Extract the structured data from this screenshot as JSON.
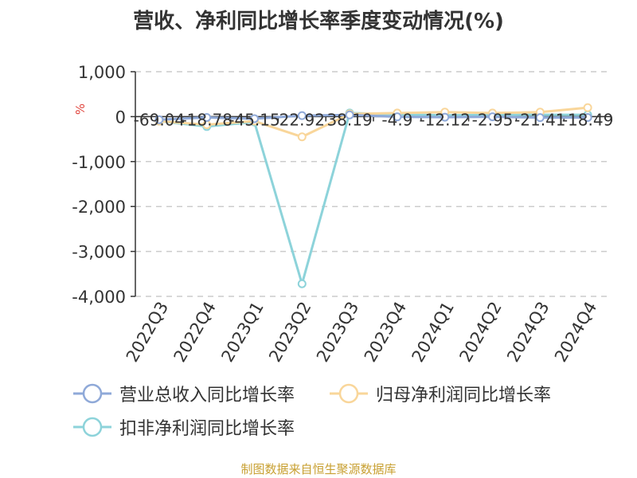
{
  "title": "营收、净利同比增长率季度变动情况(%)",
  "source": "制图数据来自恒生聚源数据库",
  "chart_data": {
    "type": "line",
    "ylabel": "%",
    "ylim": [
      -4000,
      1000
    ],
    "yticks": [
      "1,000",
      "0",
      "-1,000",
      "-2,000",
      "-3,000",
      "-4,000"
    ],
    "ytick_values": [
      1000,
      0,
      -1000,
      -2000,
      -3000,
      -4000
    ],
    "grid": true,
    "legend_position": "bottom",
    "categories": [
      "2022Q3",
      "2022Q4",
      "2023Q1",
      "2023Q2",
      "2023Q3",
      "2023Q4",
      "2024Q1",
      "2024Q2",
      "2024Q3",
      "2024Q4"
    ],
    "series": [
      {
        "name": "营业总收入同比增长率",
        "color": "#8fa9d8",
        "values": [
          -69.04,
          -18.78,
          -45.15,
          22.92,
          38.19,
          -4.9,
          -12.12,
          -2.95,
          -21.41,
          -18.49
        ],
        "labels": [
          "-69.04",
          "-18.78",
          "-45.15",
          "22.92",
          "38.19",
          "-4.9",
          "-12.12",
          "-2.95",
          "-21.41",
          "-18.49"
        ]
      },
      {
        "name": "归母净利润同比增长率",
        "color": "#f9d69a",
        "values": [
          -100,
          -180,
          -100,
          -450,
          60,
          80,
          100,
          80,
          100,
          200
        ]
      },
      {
        "name": "扣非净利润同比增长率",
        "color": "#8dd3da",
        "values": [
          -100,
          -220,
          -120,
          -3720,
          80,
          50,
          30,
          40,
          40,
          40
        ]
      }
    ]
  }
}
